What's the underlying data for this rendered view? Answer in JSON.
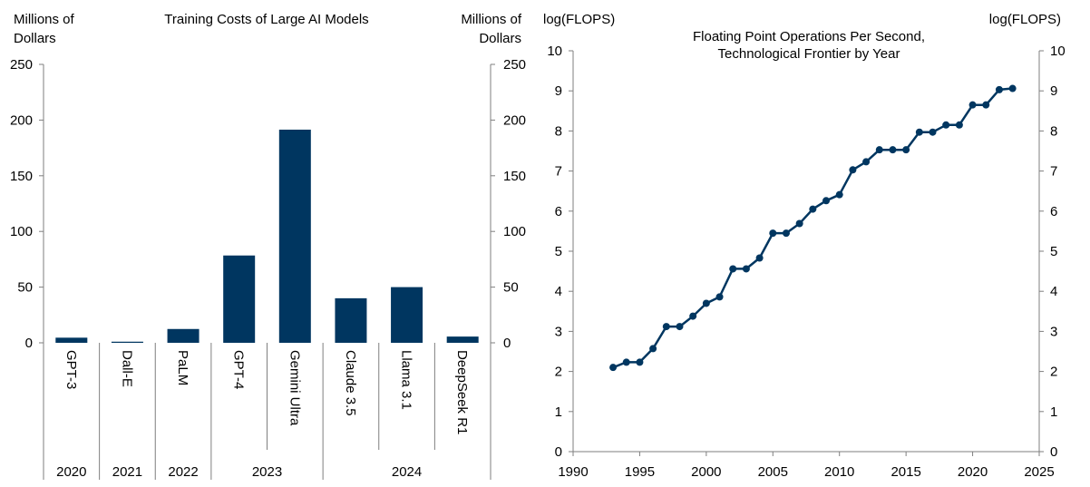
{
  "colors": {
    "bar": "#003660",
    "line": "#003660",
    "axis": "#7f7f7f",
    "text": "#000000"
  },
  "chart_data": [
    {
      "type": "bar",
      "title": "Training  Costs of Large  AI Models",
      "ylabel_left": [
        "Millions of",
        "Dollars"
      ],
      "ylabel_right": [
        "Millions of",
        "Dollars"
      ],
      "categories": [
        "GPT-3",
        "Dall-E",
        "PaLM",
        "GPT-4",
        "Gemini Ultra",
        "Claude 3.5",
        "Llama 3.1",
        "DeepSeek R1"
      ],
      "values": [
        4.6,
        1,
        12.4,
        78.4,
        191.4,
        40,
        50,
        5.6
      ],
      "ylim": [
        0,
        250
      ],
      "yticks": [
        0,
        50,
        100,
        150,
        200,
        250
      ],
      "year_groups": [
        {
          "label": "2020",
          "start": 0,
          "count": 1
        },
        {
          "label": "2021",
          "start": 1,
          "count": 1
        },
        {
          "label": "2022",
          "start": 2,
          "count": 1
        },
        {
          "label": "2023",
          "start": 3,
          "count": 2
        },
        {
          "label": "2024",
          "start": 5,
          "count": 3
        }
      ],
      "grid": false
    },
    {
      "type": "line",
      "title": [
        "Floating Point Operations Per Second,",
        "Technological  Frontier by Year"
      ],
      "ylabel_left": "log(FLOPS)",
      "ylabel_right": "log(FLOPS)",
      "x": [
        1993,
        1994,
        1995,
        1996,
        1997,
        1998,
        1999,
        2000,
        2001,
        2002,
        2003,
        2004,
        2005,
        2006,
        2007,
        2008,
        2009,
        2010,
        2011,
        2012,
        2013,
        2014,
        2015,
        2016,
        2017,
        2018,
        2019,
        2020,
        2021,
        2022,
        2023
      ],
      "y": [
        2.1,
        2.23,
        2.23,
        2.57,
        3.12,
        3.12,
        3.38,
        3.7,
        3.86,
        4.56,
        4.56,
        4.83,
        5.45,
        5.45,
        5.69,
        6.05,
        6.26,
        6.41,
        7.03,
        7.23,
        7.53,
        7.53,
        7.53,
        7.97,
        7.97,
        8.15,
        8.15,
        8.65,
        8.65,
        9.03,
        9.06
      ],
      "xlim": [
        1990,
        2025
      ],
      "xticks": [
        1990,
        1995,
        2000,
        2005,
        2010,
        2015,
        2020,
        2025
      ],
      "ylim": [
        0,
        10
      ],
      "yticks": [
        0,
        1,
        2,
        3,
        4,
        5,
        6,
        7,
        8,
        9,
        10
      ],
      "grid": false
    }
  ]
}
